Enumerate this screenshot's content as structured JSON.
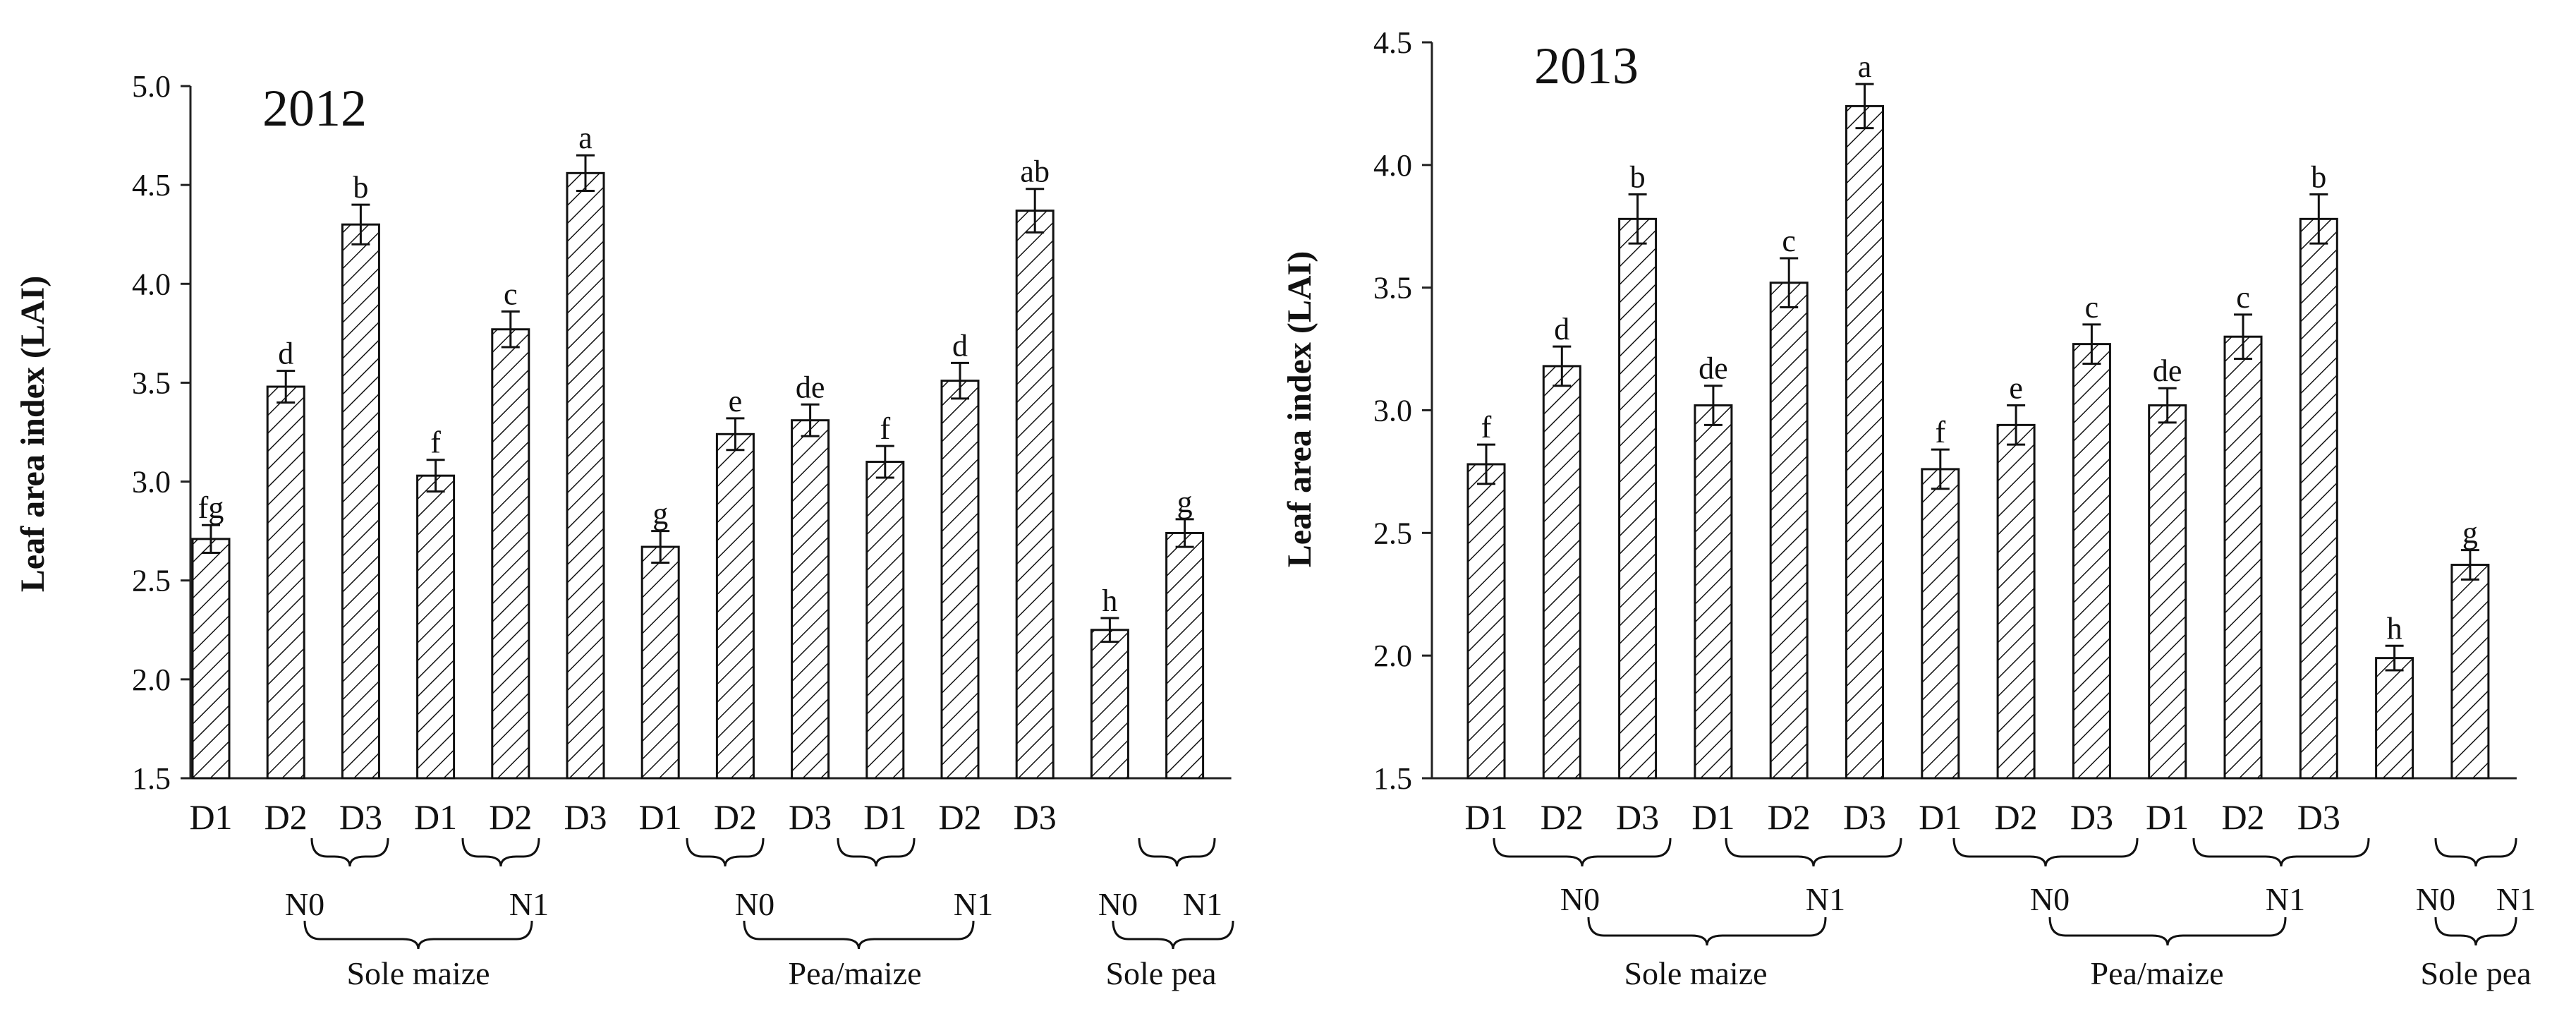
{
  "chart_data": [
    {
      "type": "bar",
      "title": "2012",
      "ylabel": "Leaf area index  (LAI)",
      "ylim": [
        1.5,
        5.0
      ],
      "yticks": [
        "1.5",
        "2.0",
        "2.5",
        "3.0",
        "3.5",
        "4.0",
        "4.5",
        "5.0"
      ],
      "categories": [
        "D1",
        "D2",
        "D3",
        "D1",
        "D2",
        "D3",
        "D1",
        "D2",
        "D3",
        "D1",
        "D2",
        "D3",
        "",
        ""
      ],
      "values": [
        2.71,
        3.48,
        4.3,
        3.03,
        3.77,
        4.56,
        2.67,
        3.24,
        3.31,
        3.1,
        3.51,
        4.37,
        2.25,
        2.74
      ],
      "errors": [
        0.07,
        0.08,
        0.1,
        0.08,
        0.09,
        0.09,
        0.08,
        0.08,
        0.08,
        0.08,
        0.09,
        0.11,
        0.06,
        0.07
      ],
      "significance": [
        "fg",
        "d",
        "b",
        "f",
        "c",
        "a",
        "g",
        "e",
        "de",
        "f",
        "d",
        "ab",
        "h",
        "g"
      ],
      "nitrogen_labels": [
        "N0",
        "N1",
        "N0",
        "N1",
        "N0",
        "N1"
      ],
      "system_labels": [
        "Sole maize",
        "Pea/maize",
        "Sole pea"
      ],
      "grid": false
    },
    {
      "type": "bar",
      "title": "2013",
      "ylabel": "Leaf area index  (LAI)",
      "ylim": [
        1.5,
        4.5
      ],
      "yticks": [
        "1.5",
        "2.0",
        "2.5",
        "3.0",
        "3.5",
        "4.0",
        "4.5"
      ],
      "categories": [
        "D1",
        "D2",
        "D3",
        "D1",
        "D2",
        "D3",
        "D1",
        "D2",
        "D3",
        "D1",
        "D2",
        "D3",
        "",
        ""
      ],
      "values": [
        2.78,
        3.18,
        3.78,
        3.02,
        3.52,
        4.24,
        2.76,
        2.94,
        3.27,
        3.02,
        3.3,
        3.78,
        1.99,
        2.37
      ],
      "errors": [
        0.08,
        0.08,
        0.1,
        0.08,
        0.1,
        0.09,
        0.08,
        0.08,
        0.08,
        0.07,
        0.09,
        0.1,
        0.05,
        0.06
      ],
      "significance": [
        "f",
        "d",
        "b",
        "de",
        "c",
        "a",
        "f",
        "e",
        "c",
        "de",
        "c",
        "b",
        "h",
        "g"
      ],
      "nitrogen_labels": [
        "N0",
        "N1",
        "N0",
        "N1",
        "N0",
        "N1"
      ],
      "system_labels": [
        "Sole maize",
        "Pea/maize",
        "Sole pea"
      ],
      "grid": false
    }
  ]
}
